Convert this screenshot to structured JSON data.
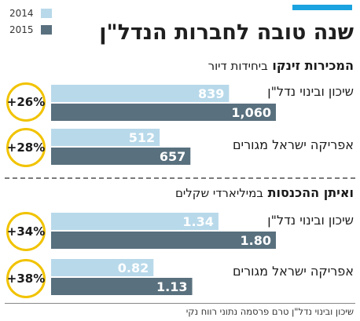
{
  "title": "שנה טובה לחברות הנדל\"ן",
  "source": "שיכון ובינוי נדל\"ן טרם פרסמה נתוני רווח נקי",
  "colors": {
    "accent": "#1aa3e0",
    "series_2014": "#b8d9ea",
    "series_2015": "#59707e",
    "circle_border": "#f1c300"
  },
  "legend": [
    {
      "label": "2014",
      "color": "#b8d9ea"
    },
    {
      "label": "2015",
      "color": "#59707e"
    }
  ],
  "chart_data": [
    {
      "type": "bar",
      "title": "המכירות זינקו",
      "subtitle": "ביחידות דיור",
      "categories": [
        "שיכון ובינוי נדל\"ן",
        "אפריקה ישראל מגורים"
      ],
      "series": [
        {
          "name": "2014",
          "values": [
            839,
            512
          ],
          "labels": [
            "839",
            "512"
          ]
        },
        {
          "name": "2015",
          "values": [
            1060,
            657
          ],
          "labels": [
            "1,060",
            "657"
          ]
        }
      ],
      "changes": [
        "+26%",
        "+28%"
      ],
      "xlim": [
        0,
        1060
      ]
    },
    {
      "type": "bar",
      "title": "ואיתן ההכנסות",
      "subtitle": "במיליארדי שקלים",
      "categories": [
        "שיכון ובינוי נדל\"ן",
        "אפריקה ישראל מגורים"
      ],
      "series": [
        {
          "name": "2014",
          "values": [
            1.34,
            0.82
          ],
          "labels": [
            "1.34",
            "0.82"
          ]
        },
        {
          "name": "2015",
          "values": [
            1.8,
            1.13
          ],
          "labels": [
            "1.80",
            "1.13"
          ]
        }
      ],
      "changes": [
        "+34%",
        "+38%"
      ],
      "xlim": [
        0,
        1.8
      ]
    }
  ]
}
